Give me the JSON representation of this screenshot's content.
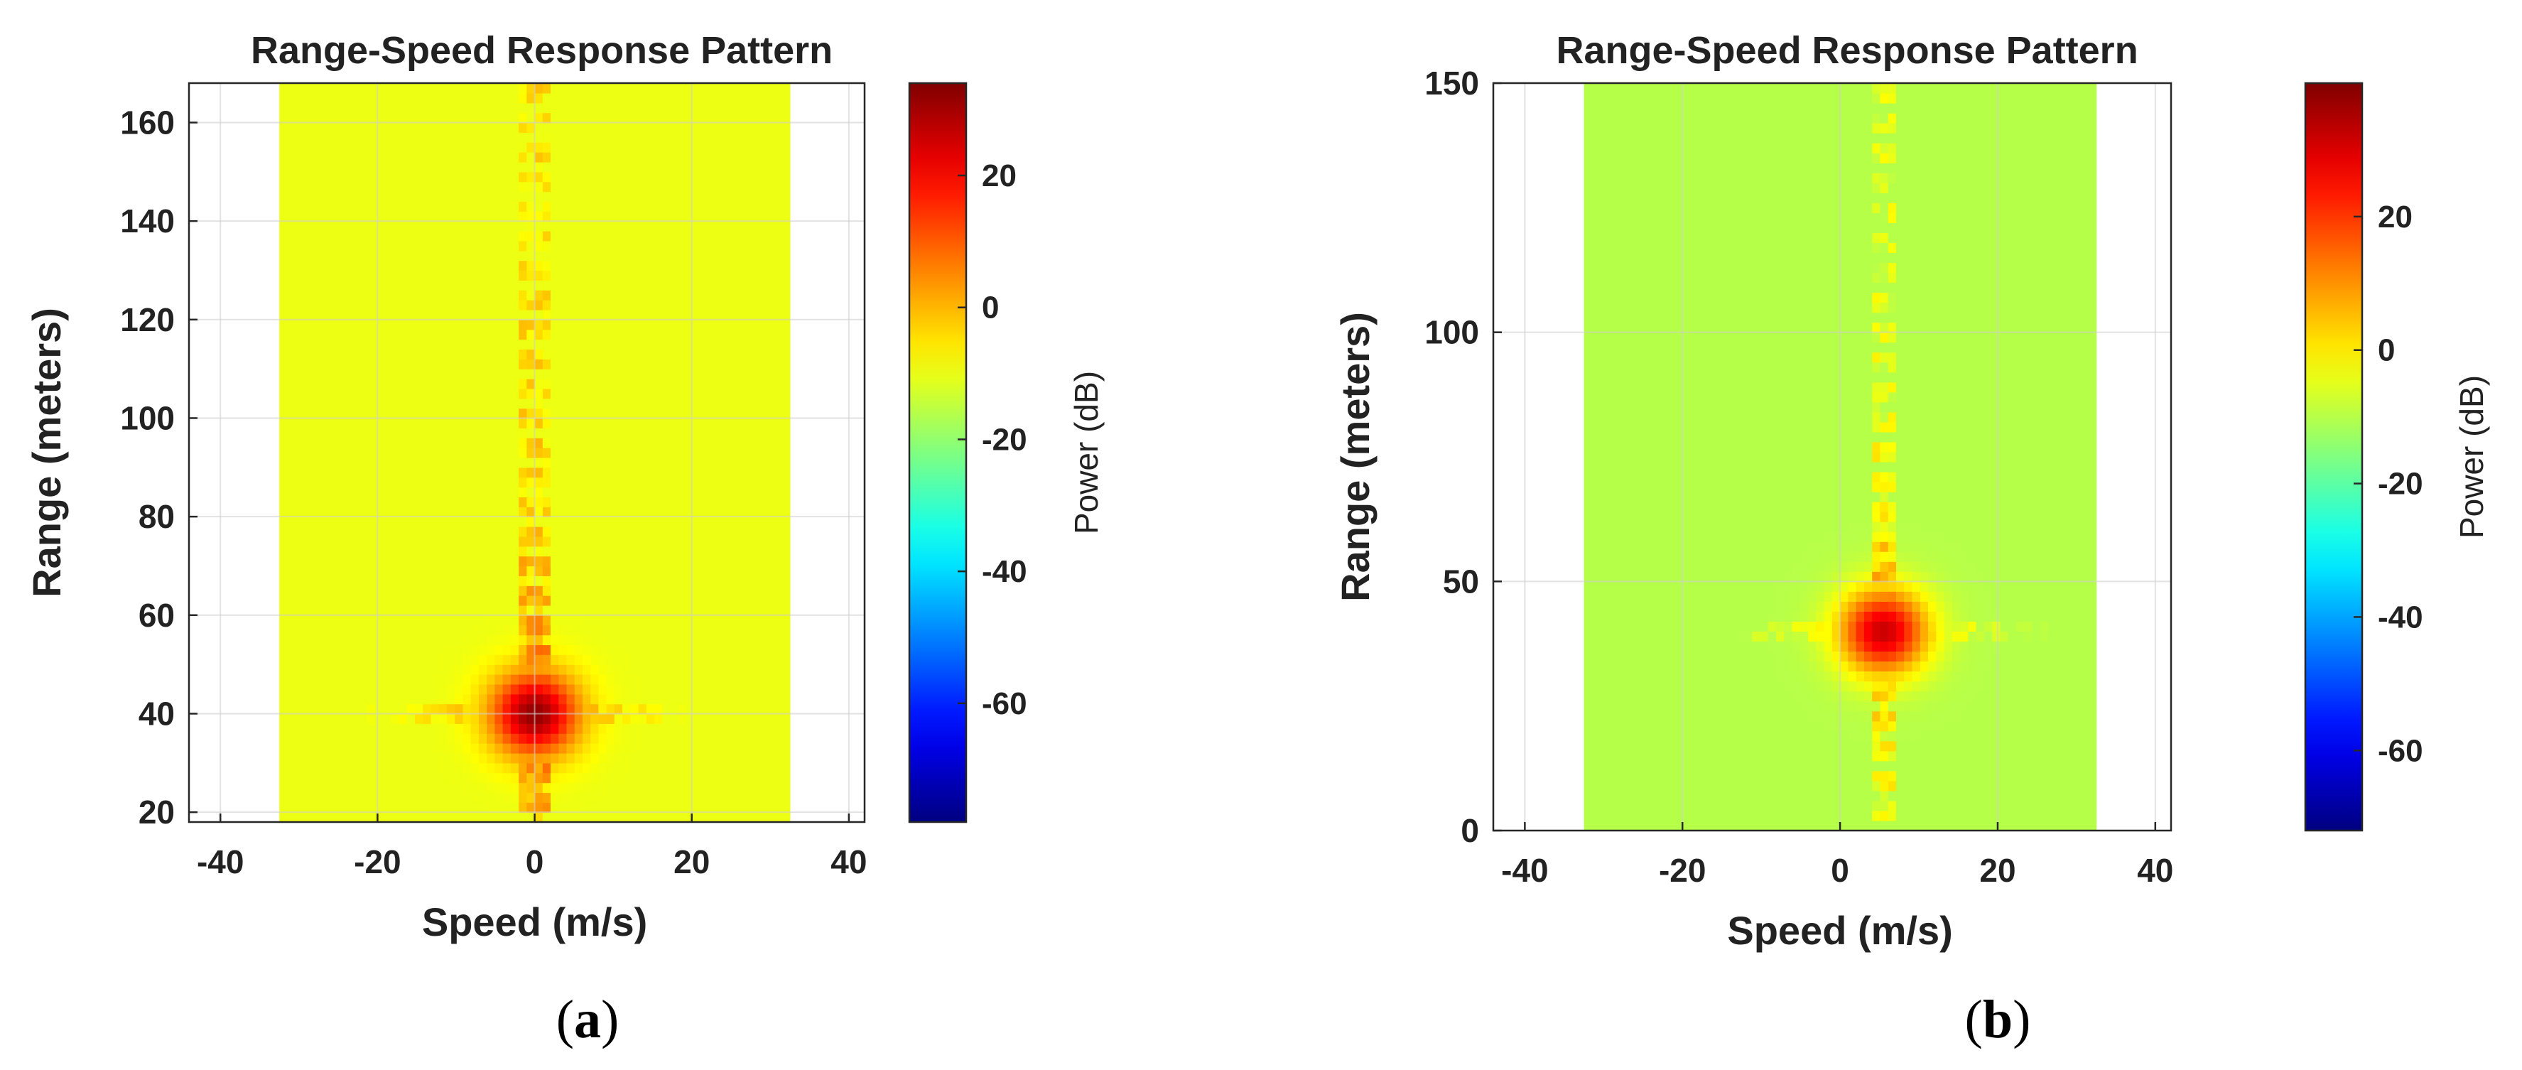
{
  "chart_data": [
    {
      "type": "heatmap",
      "panel": "a",
      "caption": "a",
      "title": "Range-Speed Response Pattern",
      "xlabel": "Speed (m/s)",
      "ylabel": "Range (meters)",
      "xlim": [
        -44,
        42
      ],
      "ylim": [
        18,
        168
      ],
      "xticks": [
        -40,
        -20,
        0,
        20,
        40
      ],
      "yticks": [
        20,
        40,
        60,
        80,
        100,
        120,
        140,
        160
      ],
      "data_extent": {
        "speed": [
          -32.5,
          32.5
        ],
        "range": [
          18,
          168
        ]
      },
      "peak": {
        "speed": 0,
        "range": 40
      },
      "colorbar": {
        "label": "Power (dB)",
        "range": [
          -78,
          34
        ],
        "ticks": [
          20,
          0,
          -20,
          -40,
          -60
        ],
        "colormap": "jet"
      }
    },
    {
      "type": "heatmap",
      "panel": "b",
      "caption": "b",
      "title": "Range-Speed Response Pattern",
      "xlabel": "Speed (m/s)",
      "ylabel": "Range (meters)",
      "xlim": [
        -44,
        42
      ],
      "ylim": [
        0,
        150
      ],
      "xticks": [
        -40,
        -20,
        0,
        20,
        40
      ],
      "yticks": [
        0,
        50,
        100,
        150
      ],
      "data_extent": {
        "speed": [
          -32.5,
          32.5
        ],
        "range": [
          0,
          150
        ]
      },
      "peak": {
        "speed": 5.5,
        "range": 40
      },
      "colorbar": {
        "label": "Power (dB)",
        "range": [
          -72,
          40
        ],
        "ticks": [
          20,
          0,
          -20,
          -40,
          -60
        ],
        "colormap": "jet"
      }
    }
  ]
}
